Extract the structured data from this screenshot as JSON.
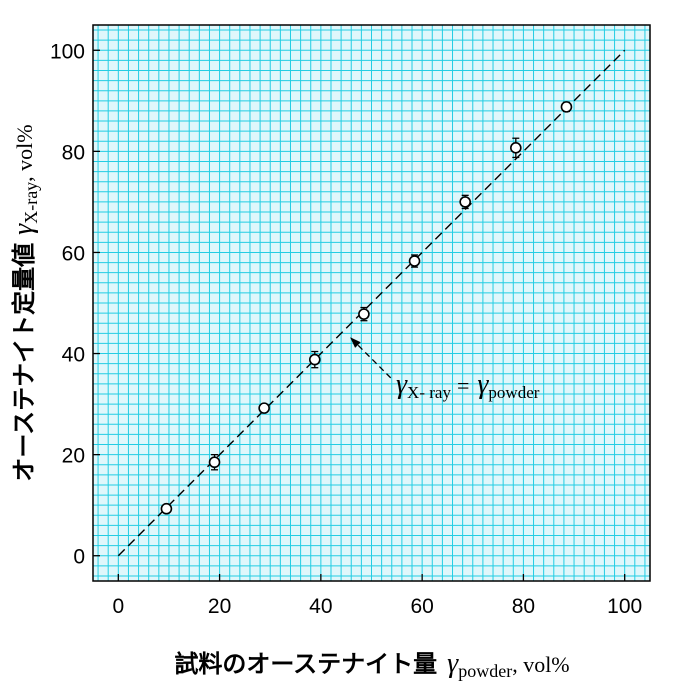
{
  "chart_data": {
    "type": "scatter",
    "xlabel": {
      "text": "試料のオーステナイト量",
      "symbol": "γ",
      "subscript": "powder",
      "unit": ", vol%"
    },
    "ylabel": {
      "text": "オーステナイト定量値",
      "symbol": "γ",
      "subscript": "X-ray",
      "unit": ", vol%"
    },
    "xlim": [
      -5,
      105
    ],
    "ylim": [
      -5,
      105
    ],
    "x_ticks": [
      0,
      20,
      40,
      60,
      80,
      100
    ],
    "y_ticks": [
      0,
      20,
      40,
      60,
      80,
      100
    ],
    "grid": true,
    "colors": {
      "plot_background": "#dff7fb",
      "grid": "#22cde3",
      "frame": "#000000",
      "marker": "#000000"
    },
    "series": [
      {
        "points": [
          {
            "x": 9.5,
            "y": 9.3,
            "err": 0.6
          },
          {
            "x": 19,
            "y": 18.5,
            "err": 1.5
          },
          {
            "x": 28.8,
            "y": 29.2,
            "err": 0.7
          },
          {
            "x": 38.8,
            "y": 38.8,
            "err": 1.6
          },
          {
            "x": 48.5,
            "y": 47.8,
            "err": 1.3
          },
          {
            "x": 58.5,
            "y": 58.3,
            "err": 1.2
          },
          {
            "x": 68.5,
            "y": 70.0,
            "err": 1.3
          },
          {
            "x": 78.5,
            "y": 80.7,
            "err": 1.9
          },
          {
            "x": 88.5,
            "y": 88.8,
            "err": 0.9
          }
        ]
      }
    ],
    "reference_line": {
      "from": [
        0,
        0
      ],
      "to": [
        100,
        100
      ],
      "style": "dashed"
    },
    "annotation": {
      "lhs_symbol": "γ",
      "lhs_subscript": "X- ray",
      "equals": "=",
      "rhs_symbol": "γ",
      "rhs_subscript": "powder",
      "arrow_target": [
        45.5,
        43.5
      ]
    }
  }
}
